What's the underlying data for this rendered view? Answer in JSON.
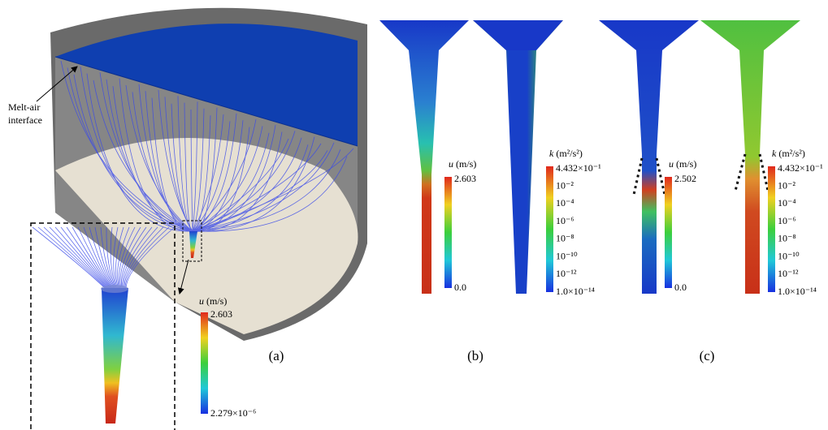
{
  "annotation": [
    "Melt-air",
    "interface"
  ],
  "panels": [
    {
      "label": "(a)",
      "colorbars": [
        {
          "quantity": "u",
          "unit": "(m/s)",
          "ticks": [
            "2.603",
            "2.279×10⁻⁶"
          ]
        }
      ]
    },
    {
      "label": "(b)",
      "colorbars": [
        {
          "quantity": "u",
          "unit": "(m/s)",
          "ticks": [
            "2.603",
            "0.0"
          ]
        },
        {
          "quantity": "k",
          "unit": "(m²/s²)",
          "ticks": [
            "4.432×10⁻¹",
            "10⁻²",
            "10⁻⁴",
            "10⁻⁶",
            "10⁻⁸",
            "10⁻¹⁰",
            "10⁻¹²",
            "1.0×10⁻¹⁴"
          ]
        }
      ]
    },
    {
      "label": "(c)",
      "colorbars": [
        {
          "quantity": "u",
          "unit": "(m/s)",
          "ticks": [
            "2.502",
            "0.0"
          ]
        },
        {
          "quantity": "k",
          "unit": "(m²/s²)",
          "ticks": [
            "4.432×10⁻¹",
            "10⁻²",
            "10⁻⁴",
            "10⁻⁶",
            "10⁻⁸",
            "10⁻¹⁰",
            "10⁻¹²",
            "1.0×10⁻¹⁴"
          ]
        }
      ]
    }
  ]
}
